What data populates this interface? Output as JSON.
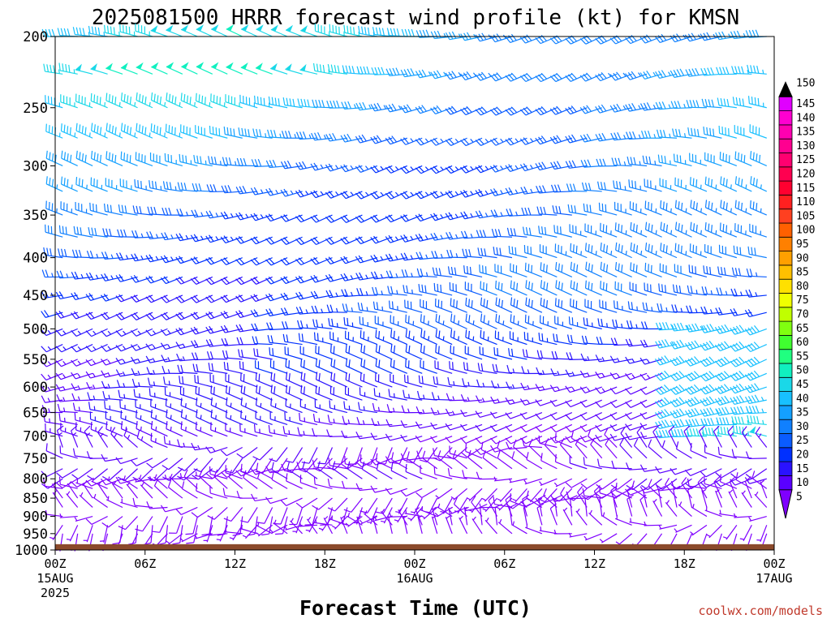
{
  "chart_data": {
    "type": "wind-barb time-height",
    "title": "2025081500 HRRR forecast wind profile (kt) for KMSN",
    "xlabel": "Forecast Time (UTC)",
    "ylabel": "",
    "units": "kt",
    "y_ticks": [
      200,
      250,
      300,
      350,
      400,
      450,
      500,
      550,
      600,
      650,
      700,
      750,
      800,
      850,
      900,
      950,
      1000
    ],
    "y_range_hPa": [
      1000,
      200
    ],
    "y_scale": "log-pressure",
    "x_ticks": [
      {
        "label": "00Z",
        "sub1": "15AUG",
        "sub2": "2025",
        "hour": 0
      },
      {
        "label": "06Z",
        "sub1": "",
        "sub2": "",
        "hour": 6
      },
      {
        "label": "12Z",
        "sub1": "",
        "sub2": "",
        "hour": 12
      },
      {
        "label": "18Z",
        "sub1": "",
        "sub2": "",
        "hour": 18
      },
      {
        "label": "00Z",
        "sub1": "16AUG",
        "sub2": "",
        "hour": 24
      },
      {
        "label": "06Z",
        "sub1": "",
        "sub2": "",
        "hour": 30
      },
      {
        "label": "12Z",
        "sub1": "",
        "sub2": "",
        "hour": 36
      },
      {
        "label": "18Z",
        "sub1": "",
        "sub2": "",
        "hour": 42
      },
      {
        "label": "00Z",
        "sub1": "17AUG",
        "sub2": "",
        "hour": 48
      }
    ],
    "x_range_hours": [
      0,
      48
    ],
    "ground": {
      "color": "#8b4a2b",
      "pressure_hPa": 982
    },
    "colorbar": {
      "levels": [
        5,
        10,
        15,
        20,
        25,
        30,
        35,
        40,
        45,
        50,
        55,
        60,
        65,
        70,
        75,
        80,
        85,
        90,
        95,
        100,
        105,
        110,
        115,
        120,
        125,
        130,
        135,
        140,
        145,
        150
      ],
      "colors": [
        "#7f00ff",
        "#5a00ff",
        "#2a12ff",
        "#0030ff",
        "#0a5cff",
        "#1080ff",
        "#14a0ff",
        "#18c0ff",
        "#1ad8e8",
        "#10f0c0",
        "#20ff80",
        "#40ff30",
        "#80ff10",
        "#c0ff00",
        "#f0ff00",
        "#ffe000",
        "#ffc000",
        "#ffa000",
        "#ff8000",
        "#ff6000",
        "#ff4020",
        "#ff2020",
        "#ff0030",
        "#ff0050",
        "#ff0070",
        "#ff0090",
        "#ff00b0",
        "#ff00d0",
        "#e000ff",
        "#000000"
      ]
    },
    "wind_field": {
      "description_levels_hPa": [
        200,
        225,
        250,
        275,
        300,
        325,
        350,
        375,
        400,
        425,
        450,
        475,
        500,
        525,
        550,
        575,
        600,
        625,
        650,
        675,
        700,
        725,
        750,
        775,
        800,
        825,
        850,
        875,
        900,
        925,
        950,
        975
      ],
      "speed_profile_kt": {
        "200": 40,
        "225": 42,
        "250": 38,
        "275": 35,
        "300": 32,
        "325": 30,
        "350": 28,
        "375": 28,
        "400": 27,
        "425": 26,
        "450": 25,
        "475": 24,
        "500": 22,
        "525": 20,
        "550": 18,
        "575": 17,
        "600": 16,
        "625": 15,
        "650": 14,
        "675": 13,
        "700": 12,
        "725": 11,
        "750": 10,
        "775": 10,
        "800": 10,
        "825": 9,
        "850": 9,
        "875": 8,
        "900": 8,
        "925": 7,
        "950": 6,
        "975": 5
      },
      "direction_deg": 270
    }
  },
  "credit": "coolwx.com/models"
}
